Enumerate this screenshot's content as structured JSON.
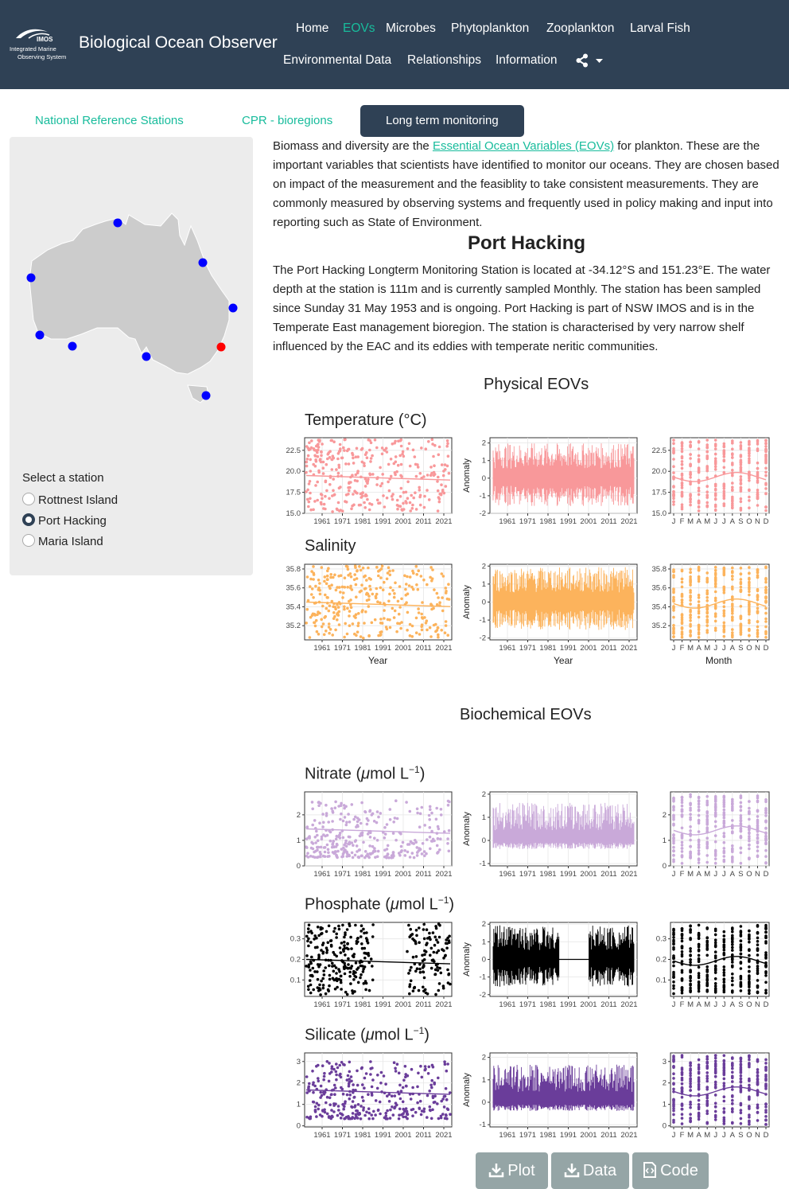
{
  "header": {
    "logo": {
      "imos": "IMOS",
      "line1": "Integrated Marine",
      "line2": "Observing System"
    },
    "brand": "Biological Ocean Observer",
    "nav": [
      {
        "label": "Home",
        "active": false
      },
      {
        "label": "EOVs",
        "active": true
      },
      {
        "label": "Microbes",
        "active": false
      },
      {
        "label": "Phytoplankton",
        "active": false
      },
      {
        "label": "Zooplankton",
        "active": false
      },
      {
        "label": "Larval Fish",
        "active": false
      },
      {
        "label": "Environmental Data",
        "active": false
      },
      {
        "label": "Relationships",
        "active": false
      },
      {
        "label": "Information",
        "active": false
      }
    ],
    "share_icon": "share-icon"
  },
  "tabs": [
    {
      "label": "National Reference Stations",
      "active": false
    },
    {
      "label": "CPR - bioregions",
      "active": false
    },
    {
      "label": "Long term monitoring",
      "active": true
    }
  ],
  "sidebar": {
    "select_label": "Select a station",
    "stations": [
      {
        "label": "Rottnest Island",
        "selected": false
      },
      {
        "label": "Port Hacking",
        "selected": true
      },
      {
        "label": "Maria Island",
        "selected": false
      }
    ],
    "map_colors": {
      "land": "#cccccc",
      "station": "#0000ff",
      "selected": "#ff0000"
    }
  },
  "intro": {
    "before": "Biomass and diversity are the ",
    "link": "Essential Ocean Variables (EOVs)",
    "after": " for plankton. These are the important variables that scientists have identified to monitor our oceans. They are chosen based on impact of the measurement and the feasiblity to take consistent measurements. They are commonly measured by observing systems and frequently used in policy making and input into reporting such as State of Environment."
  },
  "station": {
    "title": "Port Hacking",
    "description": "The Port Hacking Longterm Monitoring Station is located at -34.12°S and 151.23°E. The water depth at the station is 111m and is currently sampled Monthly. The station has been sampled since Sunday 31 May 1953 and is ongoing. Port Hacking is part of NSW IMOS and is in the Temperate East management bioregion. The station is characterised by very narrow shelf influenced by the EAC and its eddies with temperate neritic communities."
  },
  "sections": {
    "physical": "Physical EOVs",
    "biochemical": "Biochemical EOVs"
  },
  "axis_titles": {
    "year": "Year",
    "month": "Month",
    "anomaly": "Anomaly"
  },
  "chart_data": [
    {
      "type": "scatter",
      "variable": "Temperature",
      "title": "Temperature (°C)",
      "color": "#f8989a",
      "x_ticks": [
        "1961",
        "1971",
        "1981",
        "1991",
        "2001",
        "2011",
        "2021"
      ],
      "y_ticks": [
        "15.0",
        "17.5",
        "20.0",
        "22.5"
      ],
      "ylim": [
        15,
        24
      ],
      "month_ticks": [
        "J",
        "F",
        "M",
        "A",
        "M",
        "J",
        "J",
        "A",
        "S",
        "O",
        "N",
        "D"
      ],
      "anomaly_ticks": [
        "-2",
        "-1",
        "0",
        "1",
        "2"
      ],
      "anomaly_ylim": [
        -2,
        2.3
      ]
    },
    {
      "type": "scatter",
      "variable": "Salinity",
      "title": "Salinity",
      "color": "#fcb35c",
      "x_ticks": [
        "1961",
        "1971",
        "1981",
        "1991",
        "2001",
        "2011",
        "2021"
      ],
      "y_ticks": [
        "35.2",
        "35.4",
        "35.6",
        "35.8"
      ],
      "ylim": [
        35.05,
        35.85
      ],
      "month_ticks": [
        "J",
        "F",
        "M",
        "A",
        "M",
        "J",
        "J",
        "A",
        "S",
        "O",
        "N",
        "D"
      ],
      "anomaly_ticks": [
        "-2",
        "-1",
        "0",
        "1",
        "2"
      ],
      "anomaly_ylim": [
        -2.1,
        2.1
      ]
    },
    {
      "type": "scatter",
      "variable": "Nitrate",
      "title": "Nitrate (μmol L⁻¹)",
      "color": "#c9a9d9",
      "x_ticks": [
        "1961",
        "1971",
        "1981",
        "1991",
        "2001",
        "2011",
        "2021"
      ],
      "y_ticks": [
        "0",
        "1",
        "2"
      ],
      "ylim": [
        0,
        2.9
      ],
      "month_ticks": [
        "J",
        "F",
        "M",
        "A",
        "M",
        "J",
        "J",
        "A",
        "S",
        "O",
        "N",
        "D"
      ],
      "anomaly_ticks": [
        "-1",
        "0",
        "1",
        "2"
      ],
      "anomaly_ylim": [
        -1.1,
        2.1
      ]
    },
    {
      "type": "scatter",
      "variable": "Phosphate",
      "title": "Phosphate (μmol L⁻¹)",
      "color": "#000000",
      "x_ticks": [
        "1961",
        "1971",
        "1981",
        "1991",
        "2001",
        "2011",
        "2021"
      ],
      "y_ticks": [
        "0.1",
        "0.2",
        "0.3"
      ],
      "ylim": [
        0.02,
        0.38
      ],
      "month_ticks": [
        "J",
        "F",
        "M",
        "A",
        "M",
        "J",
        "J",
        "A",
        "S",
        "O",
        "N",
        "D"
      ],
      "anomaly_ticks": [
        "-2",
        "-1",
        "0",
        "1",
        "2"
      ],
      "anomaly_ylim": [
        -2.1,
        2.1
      ]
    },
    {
      "type": "scatter",
      "variable": "Silicate",
      "title": "Silicate (μmol L⁻¹)",
      "color": "#6a3d9a",
      "x_ticks": [
        "1961",
        "1971",
        "1981",
        "1991",
        "2001",
        "2011",
        "2021"
      ],
      "y_ticks": [
        "0",
        "1",
        "2",
        "3"
      ],
      "ylim": [
        -0.05,
        3.4
      ],
      "month_ticks": [
        "J",
        "F",
        "M",
        "A",
        "M",
        "J",
        "J",
        "A",
        "S",
        "O",
        "N",
        "D"
      ],
      "anomaly_ticks": [
        "-1",
        "0",
        "1",
        "2"
      ],
      "anomaly_ylim": [
        -1.1,
        2.2
      ]
    }
  ],
  "buttons": [
    {
      "label": "Plot",
      "icon": "download-icon"
    },
    {
      "label": "Data",
      "icon": "download-icon"
    },
    {
      "label": "Code",
      "icon": "code-file-icon"
    }
  ]
}
